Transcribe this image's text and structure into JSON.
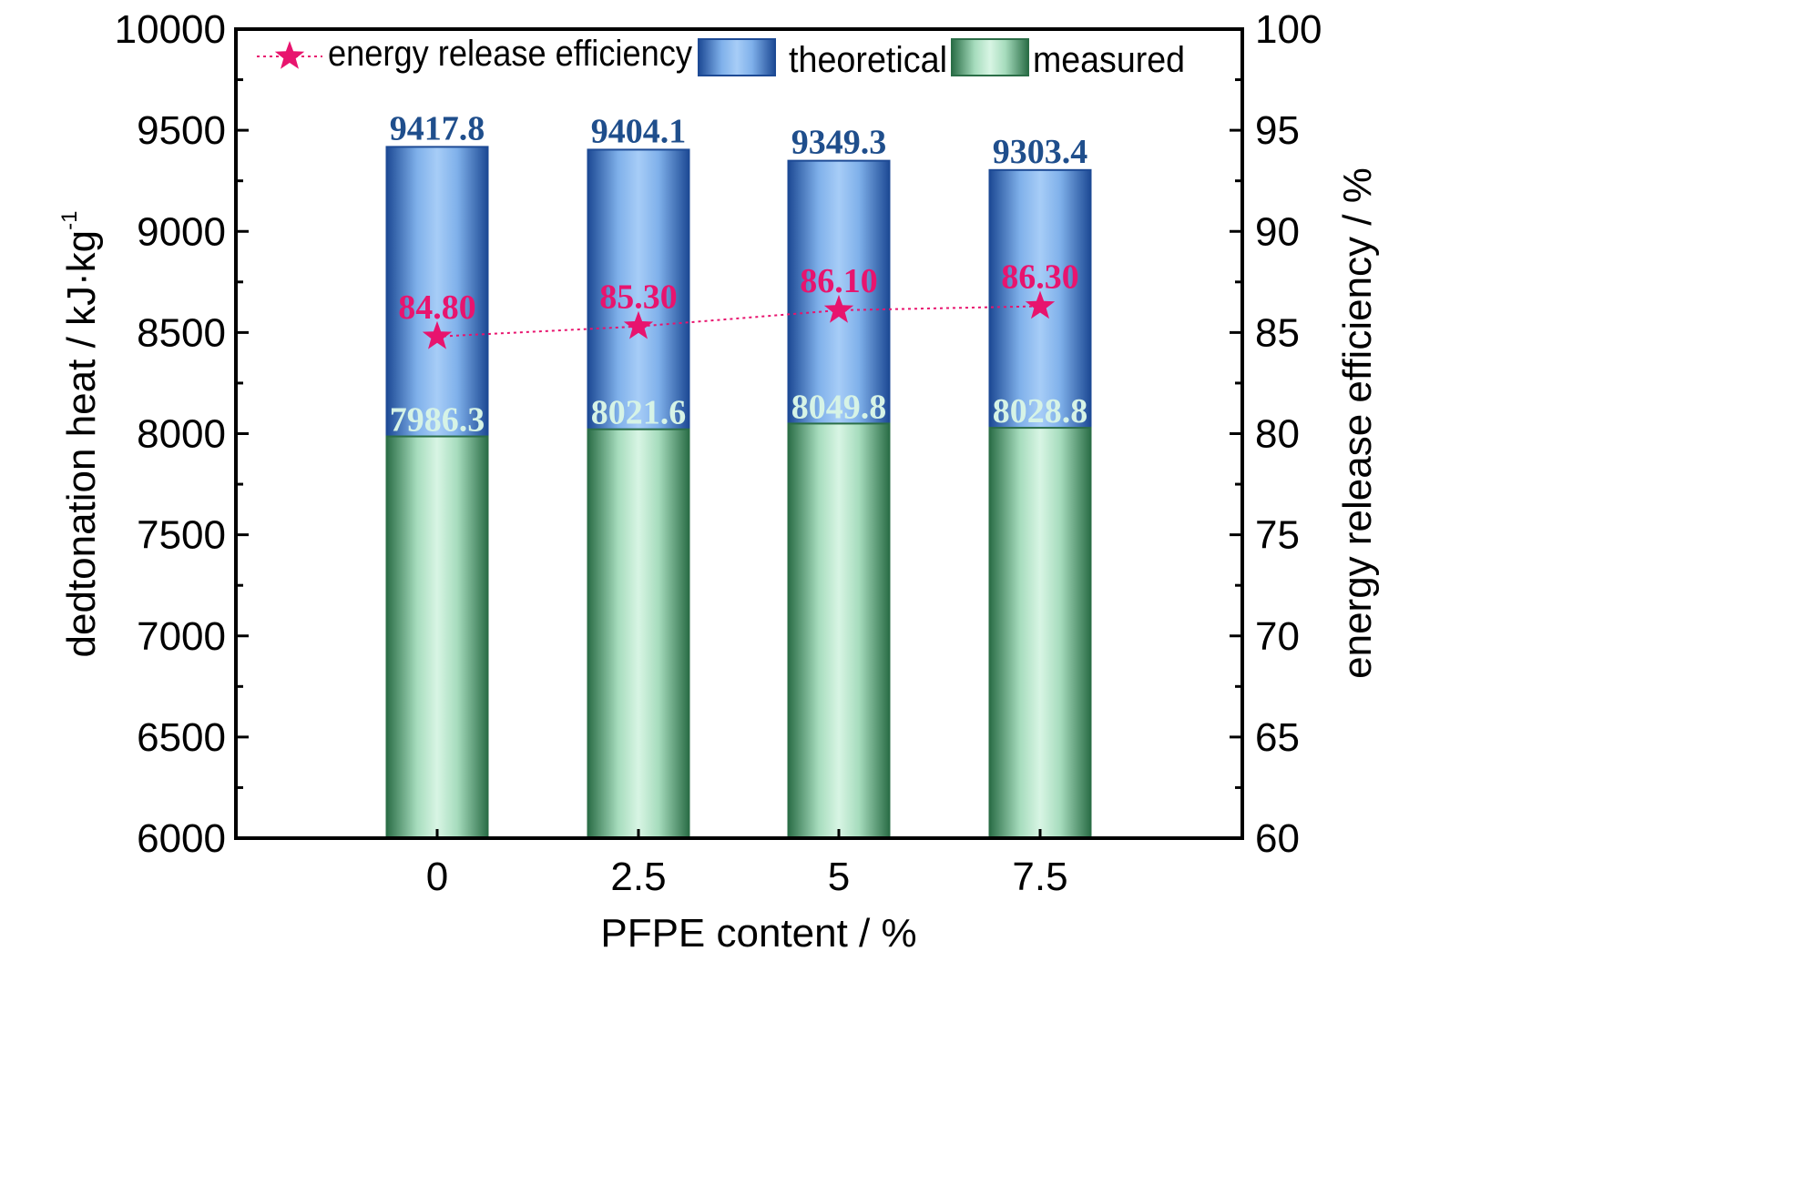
{
  "chart_data": {
    "type": "bar",
    "subtype": "overlapping-bar-with-line-secondary-axis",
    "categories": [
      "0",
      "2.5",
      "5",
      "7.5"
    ],
    "series": [
      {
        "name": "theoretical",
        "axis": "left",
        "values": [
          9417.8,
          9404.1,
          9349.3,
          9303.4
        ],
        "labels": [
          "9417.8",
          "9404.1",
          "9349.3",
          "9303.4"
        ]
      },
      {
        "name": "measured",
        "axis": "left",
        "values": [
          7986.3,
          8021.6,
          8049.8,
          8028.8
        ],
        "labels": [
          "7986.3",
          "8021.6",
          "8049.8",
          "8028.8"
        ]
      },
      {
        "name": "energy release efficiency",
        "axis": "right",
        "type": "line",
        "values": [
          84.8,
          85.3,
          86.1,
          86.3
        ],
        "labels": [
          "84.80",
          "85.30",
          "86.10",
          "86.30"
        ]
      }
    ],
    "xlabel": "PFPE content / %",
    "ylabel": "dedtonation heat / kJ·kg",
    "ylabel_superscript": "-1",
    "y2label": "energy release efficiency / %",
    "ylim": [
      6000,
      10000
    ],
    "y2lim": [
      60,
      100
    ],
    "yticks": [
      "6000",
      "6500",
      "7000",
      "7500",
      "8000",
      "8500",
      "9000",
      "9500",
      "10000"
    ],
    "y2ticks": [
      "60",
      "65",
      "70",
      "75",
      "80",
      "85",
      "90",
      "95",
      "100"
    ],
    "grid": false,
    "legend_position": "top"
  },
  "colors": {
    "theoretical_dark": "#1d4a95",
    "theoretical_light": "#a7cdf7",
    "measured_dark": "#2b6e47",
    "measured_light": "#d8f5e4",
    "efficiency": "#e8146e",
    "theoretical_label": "#1f4e8c",
    "measured_label": "#d6f3e6",
    "axis": "#000000"
  }
}
